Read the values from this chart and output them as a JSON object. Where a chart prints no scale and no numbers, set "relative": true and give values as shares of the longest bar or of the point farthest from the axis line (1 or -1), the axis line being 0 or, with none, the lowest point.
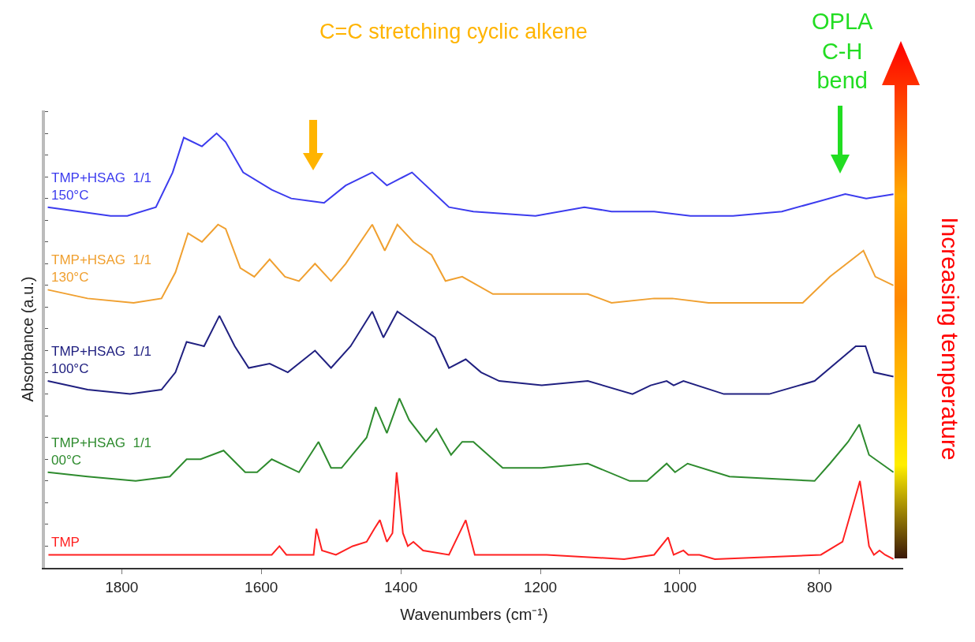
{
  "chart_data": {
    "type": "line",
    "relative": true,
    "xlabel": "Wavenumbers (cm⁻¹)",
    "ylabel": "Absorbance (a.u.)",
    "xlim": [
      1910,
      680
    ],
    "xticks": [
      1800,
      1600,
      1400,
      1200,
      1000,
      800
    ],
    "tick_labels": "x",
    "grid": false,
    "legend": false,
    "line_style": "solid",
    "annotations": [
      "C=C stretching cyclic alkene",
      "OPLA\nC-H\nbend",
      "Increasing temperature"
    ],
    "series": [
      {
        "name": "TMP+HSAG  1/1\n150°C",
        "color": "#3c3cee",
        "x": [
          1906,
          1816,
          1792,
          1751,
          1727,
          1711,
          1685,
          1664,
          1651,
          1626,
          1585,
          1557,
          1510,
          1479,
          1441,
          1420,
          1384,
          1331,
          1296,
          1207,
          1137,
          1098,
          1037,
          985,
          924,
          854,
          763,
          733,
          694
        ],
        "values": [
          0.83,
          0.81,
          0.81,
          0.83,
          0.91,
          0.99,
          0.97,
          1.0,
          0.98,
          0.91,
          0.87,
          0.85,
          0.84,
          0.88,
          0.91,
          0.88,
          0.91,
          0.83,
          0.82,
          0.81,
          0.83,
          0.82,
          0.82,
          0.81,
          0.81,
          0.82,
          0.86,
          0.85,
          0.86
        ]
      },
      {
        "name": "TMP+HSAG  1/1\n130°C",
        "color": "#f0a030",
        "x": [
          1906,
          1849,
          1783,
          1743,
          1723,
          1705,
          1685,
          1662,
          1651,
          1630,
          1610,
          1588,
          1566,
          1546,
          1523,
          1500,
          1479,
          1441,
          1423,
          1405,
          1382,
          1356,
          1336,
          1312,
          1268,
          1167,
          1132,
          1098,
          1037,
          1011,
          959,
          824,
          785,
          737,
          720,
          694
        ],
        "values": [
          0.64,
          0.62,
          0.61,
          0.62,
          0.68,
          0.77,
          0.75,
          0.79,
          0.78,
          0.69,
          0.67,
          0.71,
          0.67,
          0.66,
          0.7,
          0.66,
          0.7,
          0.79,
          0.73,
          0.79,
          0.75,
          0.72,
          0.66,
          0.67,
          0.63,
          0.63,
          0.63,
          0.61,
          0.62,
          0.62,
          0.61,
          0.61,
          0.67,
          0.73,
          0.67,
          0.65
        ]
      },
      {
        "name": "TMP+HSAG  1/1\n100°C",
        "color": "#202080",
        "x": [
          1906,
          1849,
          1788,
          1743,
          1723,
          1707,
          1682,
          1660,
          1638,
          1618,
          1588,
          1562,
          1523,
          1500,
          1472,
          1441,
          1425,
          1405,
          1351,
          1331,
          1307,
          1285,
          1259,
          1198,
          1132,
          1068,
          1042,
          1019,
          1009,
          995,
          937,
          872,
          807,
          748,
          734,
          722,
          694
        ],
        "values": [
          0.43,
          0.41,
          0.4,
          0.41,
          0.45,
          0.52,
          0.51,
          0.58,
          0.51,
          0.46,
          0.47,
          0.45,
          0.5,
          0.46,
          0.51,
          0.59,
          0.53,
          0.59,
          0.53,
          0.46,
          0.48,
          0.45,
          0.43,
          0.42,
          0.43,
          0.4,
          0.42,
          0.43,
          0.42,
          0.43,
          0.4,
          0.4,
          0.43,
          0.51,
          0.51,
          0.45,
          0.44
        ]
      },
      {
        "name": "TMP+HSAG  1/1\n00°C",
        "color": "#2e8b2e",
        "x": [
          1906,
          1849,
          1780,
          1731,
          1707,
          1687,
          1654,
          1623,
          1606,
          1585,
          1546,
          1518,
          1500,
          1485,
          1449,
          1436,
          1420,
          1402,
          1388,
          1364,
          1349,
          1328,
          1312,
          1296,
          1254,
          1198,
          1132,
          1072,
          1047,
          1019,
          1007,
          989,
          929,
          807,
          785,
          759,
          743,
          729,
          694
        ],
        "values": [
          0.22,
          0.21,
          0.2,
          0.21,
          0.25,
          0.25,
          0.27,
          0.22,
          0.22,
          0.25,
          0.22,
          0.29,
          0.23,
          0.23,
          0.3,
          0.37,
          0.31,
          0.39,
          0.34,
          0.29,
          0.32,
          0.26,
          0.29,
          0.29,
          0.23,
          0.23,
          0.24,
          0.2,
          0.2,
          0.24,
          0.22,
          0.24,
          0.21,
          0.2,
          0.24,
          0.29,
          0.33,
          0.26,
          0.22
        ]
      },
      {
        "name": "TMP",
        "color": "#ff2020",
        "x": [
          1905,
          1755,
          1585,
          1574,
          1564,
          1525,
          1521,
          1513,
          1493,
          1469,
          1449,
          1438,
          1430,
          1420,
          1412,
          1406,
          1397,
          1390,
          1382,
          1368,
          1331,
          1307,
          1294,
          1254,
          1217,
          1191,
          1080,
          1037,
          1017,
          1009,
          995,
          988,
          972,
          950,
          798,
          767,
          742,
          729,
          722,
          714,
          706,
          694
        ],
        "values": [
          0.03,
          0.03,
          0.03,
          0.05,
          0.03,
          0.03,
          0.09,
          0.04,
          0.03,
          0.05,
          0.06,
          0.09,
          0.11,
          0.06,
          0.08,
          0.22,
          0.08,
          0.05,
          0.06,
          0.04,
          0.03,
          0.11,
          0.03,
          0.03,
          0.03,
          0.03,
          0.02,
          0.03,
          0.07,
          0.03,
          0.04,
          0.03,
          0.03,
          0.02,
          0.03,
          0.06,
          0.2,
          0.05,
          0.03,
          0.04,
          0.03,
          0.02
        ]
      }
    ]
  }
}
